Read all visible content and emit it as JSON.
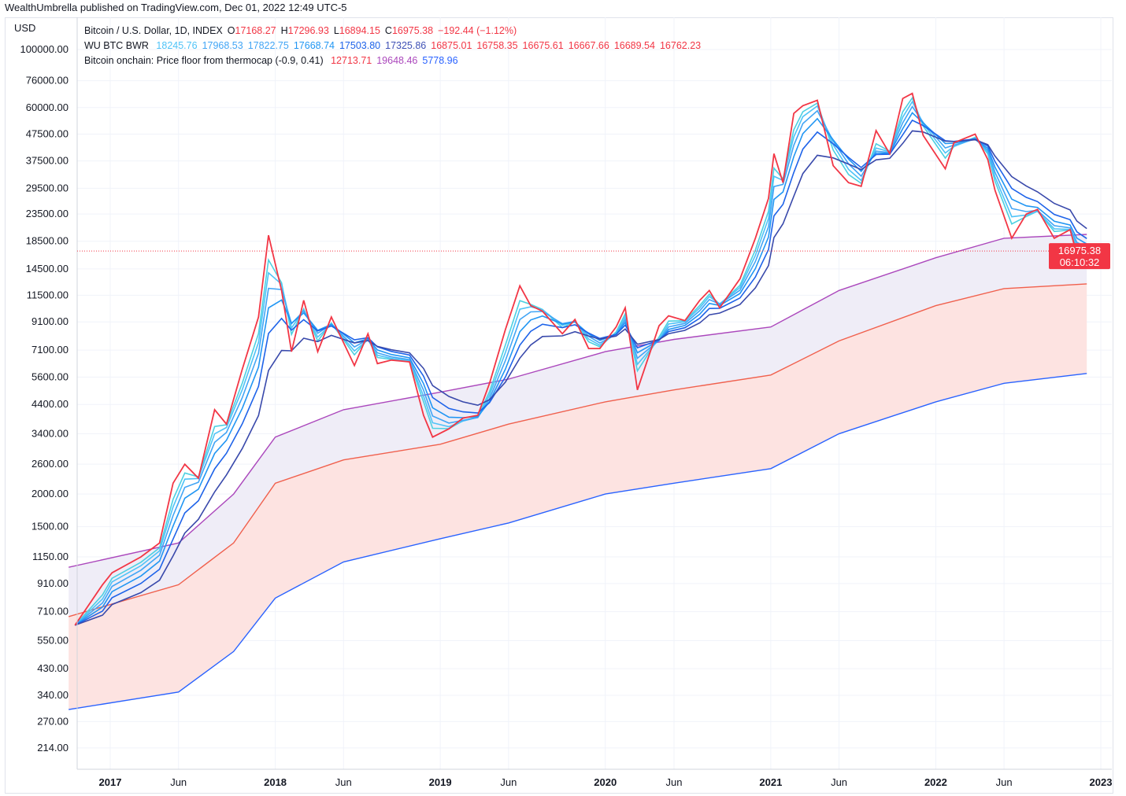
{
  "published": "WealthUmbrella published on TradingView.com, Dec 01, 2022 12:49 UTC-5",
  "legend": {
    "symbol": "Bitcoin / U.S. Dollar, 1D, INDEX",
    "o_label": "O",
    "o": "17168.27",
    "h_label": "H",
    "h": "17296.93",
    "l_label": "L",
    "l": "16894.15",
    "c_label": "C",
    "c": "16975.38",
    "change": "−192.44 (−1.12%)",
    "ribbon_name": "WU BTC BWR",
    "ribbon_values": [
      "18245.76",
      "17968.53",
      "17822.75",
      "17668.74",
      "17503.80",
      "17325.86",
      "16875.01",
      "16758.35",
      "16675.61",
      "16667.66",
      "16689.54",
      "16762.23"
    ],
    "onchain_name": "Bitcoin onchain: Price floor from thermocap (-0.9, 0.41)",
    "onchain_values": [
      "12713.71",
      "19648.46",
      "5778.96"
    ]
  },
  "price_label": {
    "price": "16975.38",
    "countdown": "06:10:32",
    "color": "#f23645"
  },
  "chart_data": {
    "type": "line",
    "yscale": "log",
    "ylabel": "USD",
    "ylim": [
      190,
      110000
    ],
    "xlim": [
      "2016-10-01",
      "2023-01-10"
    ],
    "yticks": [
      "100000.00",
      "76000.00",
      "60000.00",
      "47500.00",
      "37500.00",
      "29500.00",
      "23500.00",
      "18500.00",
      "14500.00",
      "11500.00",
      "9100.00",
      "7100.00",
      "5600.00",
      "4400.00",
      "3400.00",
      "2600.00",
      "2000.00",
      "1500.00",
      "1150.00",
      "910.00",
      "710.00",
      "550.00",
      "430.00",
      "340.00",
      "270.00",
      "214.00"
    ],
    "xticks": [
      {
        "d": "2017-01-01",
        "t": "2017",
        "bold": true
      },
      {
        "d": "2017-06-01",
        "t": "Jun"
      },
      {
        "d": "2018-01-01",
        "t": "2018",
        "bold": true
      },
      {
        "d": "2018-06-01",
        "t": "Jun"
      },
      {
        "d": "2019-01-01",
        "t": "2019",
        "bold": true
      },
      {
        "d": "2019-06-01",
        "t": "Jun"
      },
      {
        "d": "2020-01-01",
        "t": "2020",
        "bold": true
      },
      {
        "d": "2020-06-01",
        "t": "Jun"
      },
      {
        "d": "2021-01-01",
        "t": "2021",
        "bold": true
      },
      {
        "d": "2021-06-01",
        "t": "Jun"
      },
      {
        "d": "2022-01-01",
        "t": "2022",
        "bold": true
      },
      {
        "d": "2022-06-01",
        "t": "Jun"
      },
      {
        "d": "2023-01-01",
        "t": "2023",
        "bold": true
      }
    ],
    "series": [
      {
        "key": "price",
        "color": "#f23645",
        "points": [
          [
            "2016-10-15",
            630
          ],
          [
            "2016-12-15",
            900
          ],
          [
            "2017-01-05",
            1000
          ],
          [
            "2017-03-10",
            1150
          ],
          [
            "2017-04-20",
            1300
          ],
          [
            "2017-05-20",
            2200
          ],
          [
            "2017-06-15",
            2600
          ],
          [
            "2017-07-15",
            2300
          ],
          [
            "2017-08-20",
            4200
          ],
          [
            "2017-09-15",
            3700
          ],
          [
            "2017-10-20",
            6000
          ],
          [
            "2017-11-25",
            9500
          ],
          [
            "2017-12-17",
            19500
          ],
          [
            "2018-01-15",
            12000
          ],
          [
            "2018-02-06",
            7000
          ],
          [
            "2018-03-05",
            11000
          ],
          [
            "2018-04-05",
            7000
          ],
          [
            "2018-05-05",
            9500
          ],
          [
            "2018-06-25",
            6200
          ],
          [
            "2018-07-25",
            8200
          ],
          [
            "2018-08-15",
            6300
          ],
          [
            "2018-09-15",
            6500
          ],
          [
            "2018-10-25",
            6400
          ],
          [
            "2018-11-25",
            4000
          ],
          [
            "2018-12-15",
            3300
          ],
          [
            "2019-01-20",
            3550
          ],
          [
            "2019-02-20",
            3900
          ],
          [
            "2019-03-25",
            4000
          ],
          [
            "2019-04-20",
            5300
          ],
          [
            "2019-05-25",
            8500
          ],
          [
            "2019-06-26",
            12500
          ],
          [
            "2019-07-20",
            10500
          ],
          [
            "2019-08-15",
            10000
          ],
          [
            "2019-09-28",
            8200
          ],
          [
            "2019-10-26",
            9300
          ],
          [
            "2019-11-25",
            7200
          ],
          [
            "2019-12-20",
            7200
          ],
          [
            "2020-01-25",
            8700
          ],
          [
            "2020-02-14",
            10300
          ],
          [
            "2020-03-12",
            5000
          ],
          [
            "2020-04-29",
            8800
          ],
          [
            "2020-05-20",
            9600
          ],
          [
            "2020-06-25",
            9200
          ],
          [
            "2020-07-28",
            11000
          ],
          [
            "2020-08-18",
            12000
          ],
          [
            "2020-09-10",
            10300
          ],
          [
            "2020-10-25",
            13300
          ],
          [
            "2020-11-28",
            19000
          ],
          [
            "2020-12-27",
            27000
          ],
          [
            "2021-01-08",
            40000
          ],
          [
            "2021-01-28",
            31000
          ],
          [
            "2021-02-21",
            57000
          ],
          [
            "2021-03-13",
            61000
          ],
          [
            "2021-04-14",
            64000
          ],
          [
            "2021-05-19",
            36000
          ],
          [
            "2021-06-22",
            31000
          ],
          [
            "2021-07-20",
            30000
          ],
          [
            "2021-08-22",
            49000
          ],
          [
            "2021-09-21",
            40000
          ],
          [
            "2021-10-20",
            65000
          ],
          [
            "2021-11-10",
            68000
          ],
          [
            "2021-12-04",
            47000
          ],
          [
            "2022-01-22",
            35000
          ],
          [
            "2022-02-10",
            44000
          ],
          [
            "2022-03-29",
            47500
          ],
          [
            "2022-04-26",
            38000
          ],
          [
            "2022-05-12",
            29000
          ],
          [
            "2022-06-18",
            19000
          ],
          [
            "2022-07-20",
            23500
          ],
          [
            "2022-08-14",
            24500
          ],
          [
            "2022-09-20",
            19000
          ],
          [
            "2022-10-25",
            20500
          ],
          [
            "2022-11-09",
            16500
          ],
          [
            "2022-12-01",
            16975
          ]
        ]
      },
      {
        "key": "thermocap_upper",
        "color": "#ab47bc",
        "points": [
          [
            "2016-10-01",
            1050
          ],
          [
            "2017-06-01",
            1300
          ],
          [
            "2017-10-01",
            2000
          ],
          [
            "2018-01-01",
            3300
          ],
          [
            "2018-06-01",
            4200
          ],
          [
            "2019-01-01",
            4900
          ],
          [
            "2019-06-01",
            5500
          ],
          [
            "2020-01-01",
            7000
          ],
          [
            "2020-06-01",
            7800
          ],
          [
            "2021-01-01",
            8700
          ],
          [
            "2021-06-01",
            12000
          ],
          [
            "2022-01-01",
            16000
          ],
          [
            "2022-06-01",
            19000
          ],
          [
            "2022-12-01",
            19648
          ]
        ]
      },
      {
        "key": "thermocap_mid",
        "color": "#f0604d",
        "points": [
          [
            "2016-10-01",
            680
          ],
          [
            "2017-06-01",
            900
          ],
          [
            "2017-10-01",
            1300
          ],
          [
            "2018-01-01",
            2200
          ],
          [
            "2018-06-01",
            2700
          ],
          [
            "2019-01-01",
            3100
          ],
          [
            "2019-06-01",
            3700
          ],
          [
            "2020-01-01",
            4500
          ],
          [
            "2020-06-01",
            5000
          ],
          [
            "2021-01-01",
            5700
          ],
          [
            "2021-06-01",
            7700
          ],
          [
            "2022-01-01",
            10500
          ],
          [
            "2022-06-01",
            12200
          ],
          [
            "2022-12-01",
            12714
          ]
        ]
      },
      {
        "key": "thermocap_lower",
        "color": "#2962ff",
        "points": [
          [
            "2016-10-01",
            300
          ],
          [
            "2017-06-01",
            350
          ],
          [
            "2017-10-01",
            500
          ],
          [
            "2018-01-01",
            800
          ],
          [
            "2018-06-01",
            1100
          ],
          [
            "2019-01-01",
            1350
          ],
          [
            "2019-06-01",
            1550
          ],
          [
            "2020-01-01",
            2000
          ],
          [
            "2020-06-01",
            2200
          ],
          [
            "2021-01-01",
            2500
          ],
          [
            "2021-06-01",
            3400
          ],
          [
            "2022-01-01",
            4500
          ],
          [
            "2022-06-01",
            5300
          ],
          [
            "2022-12-01",
            5779
          ]
        ]
      }
    ],
    "fills": [
      {
        "between": [
          "thermocap_upper",
          "thermocap_mid"
        ],
        "color": "#efedf7"
      },
      {
        "between": [
          "thermocap_mid",
          "thermocap_lower"
        ],
        "color": "#fde3e1"
      }
    ],
    "ribbon_colors": [
      "#4dd0e1",
      "#4fc3f7",
      "#42a5f5",
      "#2196f3",
      "#1e63e9",
      "#3949ab"
    ],
    "grid": true,
    "legend": "top-left"
  }
}
